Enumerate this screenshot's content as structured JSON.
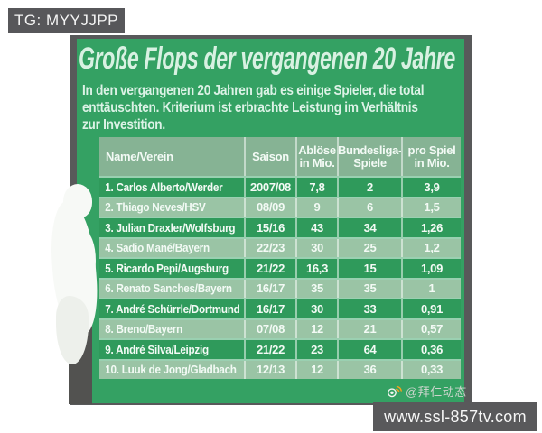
{
  "overlays": {
    "tg_label": "TG: MYYJJPP",
    "site_label": "www.ssl-857tv.com"
  },
  "credit": {
    "weibo_handle": "@拜仁动态"
  },
  "infographic": {
    "title": "Große Flops der vergangenen 20 Jahre",
    "subtitle": "In den vergangenen 20 Jahren gab es einige Spieler, die total\nenttäuschten. Kriterium ist erbrachte Leistung im Verhältnis\nzur Investition.",
    "table": {
      "headers": [
        "Name/Verein",
        "Saison",
        "Ablöse\nin Mio.",
        "Bundesliga-\nSpiele",
        "pro Spiel\nin Mio."
      ]
    },
    "colors": {
      "panel_green": "#34a163",
      "row_dark_green": "#2f9a5b",
      "row_light_green": "#9ac4a5",
      "header_green": "#86b394",
      "photo_gray": "#58595a",
      "label_gray": "#59595b",
      "title_mint": "#d8f1e2"
    }
  },
  "chart_data": {
    "type": "table",
    "title": "Große Flops der vergangenen 20 Jahre",
    "subtitle": "In den vergangenen 20 Jahren gab es einige Spieler, die total enttäuschten. Kriterium ist erbrachte Leistung im Verhältnis zur Investition.",
    "columns": [
      "Name/Verein",
      "Saison",
      "Ablöse in Mio.",
      "Bundesliga-Spiele",
      "pro Spiel in Mio."
    ],
    "rows": [
      [
        "1. Carlos Alberto/Werder",
        "2007/08",
        "7,8",
        "2",
        "3,9"
      ],
      [
        "2. Thiago Neves/HSV",
        "08/09",
        "9",
        "6",
        "1,5"
      ],
      [
        "3. Julian Draxler/Wolfsburg",
        "15/16",
        "43",
        "34",
        "1,26"
      ],
      [
        "4. Sadio Mané/Bayern",
        "22/23",
        "30",
        "25",
        "1,2"
      ],
      [
        "5. Ricardo Pepi/Augsburg",
        "21/22",
        "16,3",
        "15",
        "1,09"
      ],
      [
        "6. Renato Sanches/Bayern",
        "16/17",
        "35",
        "35",
        "1"
      ],
      [
        "7. André Schürrle/Dortmund",
        "16/17",
        "30",
        "33",
        "0,91"
      ],
      [
        "8. Breno/Bayern",
        "07/08",
        "12",
        "21",
        "0,57"
      ],
      [
        "9. André Silva/Leipzig",
        "21/22",
        "23",
        "64",
        "0,36"
      ],
      [
        "10. Luuk de Jong/Gladbach",
        "12/13",
        "12",
        "36",
        "0,33"
      ]
    ]
  }
}
